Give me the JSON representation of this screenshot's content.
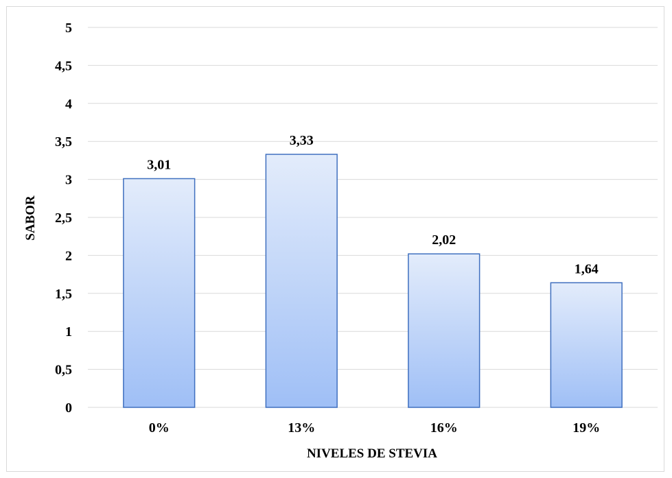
{
  "chart_data": {
    "type": "bar",
    "categories": [
      "0%",
      "13%",
      "16%",
      "19%"
    ],
    "series": [
      {
        "values": [
          3.01,
          3.33,
          2.02,
          1.64
        ]
      }
    ],
    "data_labels": [
      "3,01",
      "3,33",
      "2,02",
      "1,64"
    ],
    "title": "",
    "xlabel": "NIVELES DE STEVIA",
    "ylabel": "SABOR",
    "ylim": [
      0,
      5
    ],
    "yticks": [
      0,
      0.5,
      1,
      1.5,
      2,
      2.5,
      3,
      3.5,
      4,
      4.5,
      5
    ],
    "ytick_labels": [
      "0",
      "0,5",
      "1",
      "1,5",
      "2",
      "2,5",
      "3",
      "3,5",
      "4",
      "4,5",
      "5"
    ],
    "grid": true,
    "legend": "none",
    "colors": {
      "bar_top": "#e3ecfb",
      "bar_bottom": "#9fbff6",
      "bar_border": "#3f6fbf",
      "gridline": "#d9d9d9",
      "frame": "#d9d9d9"
    }
  }
}
